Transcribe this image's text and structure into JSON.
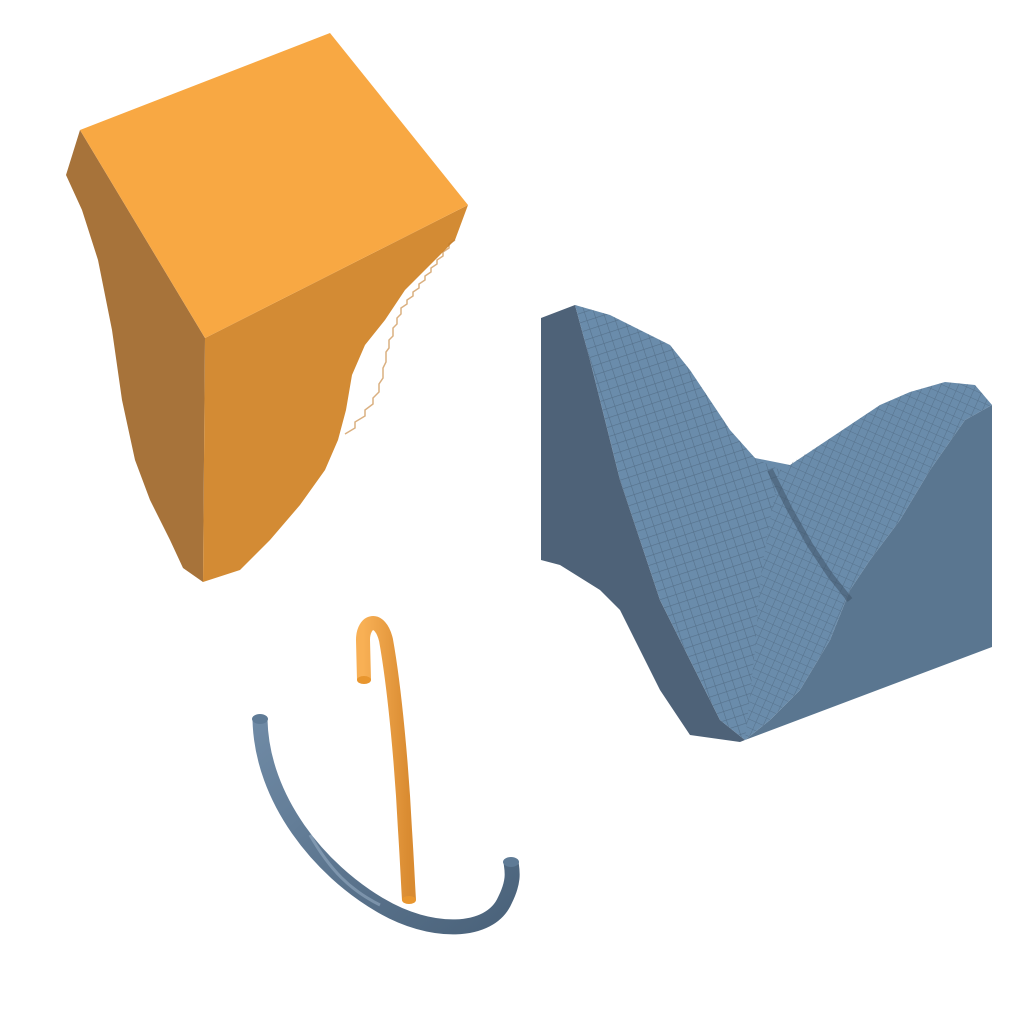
{
  "scene": {
    "background": "#ffffff",
    "objects": [
      {
        "id": "orange-voxel-block",
        "kind": "voxelized tapered block",
        "color_top": "#f8a843",
        "color_left": "#a7733a",
        "color_right": "#d38b34"
      },
      {
        "id": "blue-voxel-saddle",
        "kind": "voxelized block with curved saddle-shaped top",
        "color_top": "#6a8cab",
        "color_left": "#4e6278",
        "color_right": "#5a7690"
      },
      {
        "id": "orange-tube-arc",
        "kind": "curved tube",
        "color": "#f3a23f",
        "color_shade": "#c77f2c"
      },
      {
        "id": "blue-tube-arc",
        "kind": "curved tube",
        "color": "#5f7b96",
        "color_shade": "#445a70"
      }
    ]
  }
}
